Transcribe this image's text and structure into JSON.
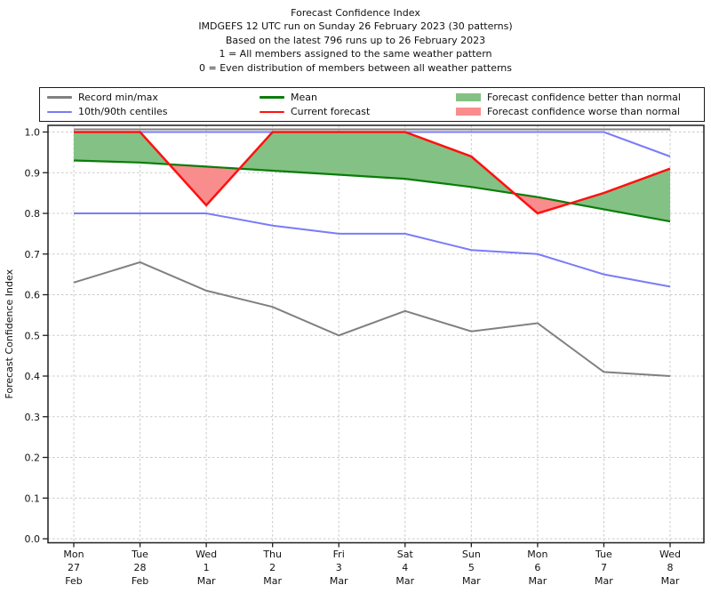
{
  "title": {
    "line1": "Forecast Confidence Index",
    "line2": "IMDGEFS 12 UTC run on Sunday 26 February 2023 (30 patterns)",
    "line3": "Based on the latest 796 runs up to 26 February 2023",
    "line4": "1 = All members assigned to the same weather pattern",
    "line5": "0 = Even distribution of members between all weather patterns"
  },
  "legend": {
    "entries": [
      {
        "label": "Record min/max",
        "type": "line",
        "color": "#808080"
      },
      {
        "label": "10th/90th centiles",
        "type": "line",
        "color": "#7b7bf8"
      },
      {
        "label": "Mean",
        "type": "line",
        "color": "#0a7d0a"
      },
      {
        "label": "Current forecast",
        "type": "line",
        "color": "#ff1111"
      },
      {
        "label": "Forecast confidence better than normal",
        "type": "patch",
        "color": "#84c184"
      },
      {
        "label": "Forecast confidence worse than normal",
        "type": "patch",
        "color": "#f98c8c"
      }
    ]
  },
  "chart_data": {
    "type": "line",
    "title": "Forecast Confidence Index",
    "ylabel": "Forecast Confidence Index",
    "ylim": [
      0.0,
      1.0
    ],
    "yticks": [
      0.0,
      0.1,
      0.2,
      0.3,
      0.4,
      0.5,
      0.6,
      0.7,
      0.8,
      0.9,
      1.0
    ],
    "grid": true,
    "legend_position": "top",
    "categories": [
      {
        "day": "Mon",
        "num": "27",
        "month": "Feb"
      },
      {
        "day": "Tue",
        "num": "28",
        "month": "Feb"
      },
      {
        "day": "Wed",
        "num": "1",
        "month": "Mar"
      },
      {
        "day": "Thu",
        "num": "2",
        "month": "Mar"
      },
      {
        "day": "Fri",
        "num": "3",
        "month": "Mar"
      },
      {
        "day": "Sat",
        "num": "4",
        "month": "Mar"
      },
      {
        "day": "Sun",
        "num": "5",
        "month": "Mar"
      },
      {
        "day": "Mon",
        "num": "6",
        "month": "Mar"
      },
      {
        "day": "Tue",
        "num": "7",
        "month": "Mar"
      },
      {
        "day": "Wed",
        "num": "8",
        "month": "Mar"
      }
    ],
    "series": [
      {
        "name": "Record max",
        "color": "#808080",
        "width": 2,
        "values": [
          1.0,
          1.0,
          1.0,
          1.0,
          1.0,
          1.0,
          1.0,
          1.0,
          1.0,
          1.0
        ]
      },
      {
        "name": "Record min",
        "color": "#808080",
        "width": 2,
        "values": [
          0.63,
          0.68,
          0.61,
          0.57,
          0.5,
          0.56,
          0.51,
          0.53,
          0.41,
          0.4
        ]
      },
      {
        "name": "90th centile",
        "color": "#7b7bf8",
        "width": 2,
        "values": [
          1.0,
          1.0,
          1.0,
          1.0,
          1.0,
          1.0,
          1.0,
          1.0,
          1.0,
          0.94
        ]
      },
      {
        "name": "10th centile",
        "color": "#7b7bf8",
        "width": 2,
        "values": [
          0.8,
          0.8,
          0.8,
          0.77,
          0.75,
          0.75,
          0.71,
          0.7,
          0.65,
          0.62
        ]
      },
      {
        "name": "Mean",
        "color": "#0a7d0a",
        "width": 2.2,
        "values": [
          0.93,
          0.925,
          0.915,
          0.905,
          0.895,
          0.885,
          0.865,
          0.84,
          0.81,
          0.78
        ]
      },
      {
        "name": "Current forecast",
        "color": "#ff1111",
        "width": 2.5,
        "values": [
          1.0,
          1.0,
          0.82,
          1.0,
          1.0,
          1.0,
          0.94,
          0.8,
          0.85,
          0.91
        ]
      }
    ],
    "fills": {
      "better_than_normal_color": "#84c184",
      "worse_than_normal_color": "#f98c8c",
      "between": [
        "Current forecast",
        "Mean"
      ]
    }
  }
}
